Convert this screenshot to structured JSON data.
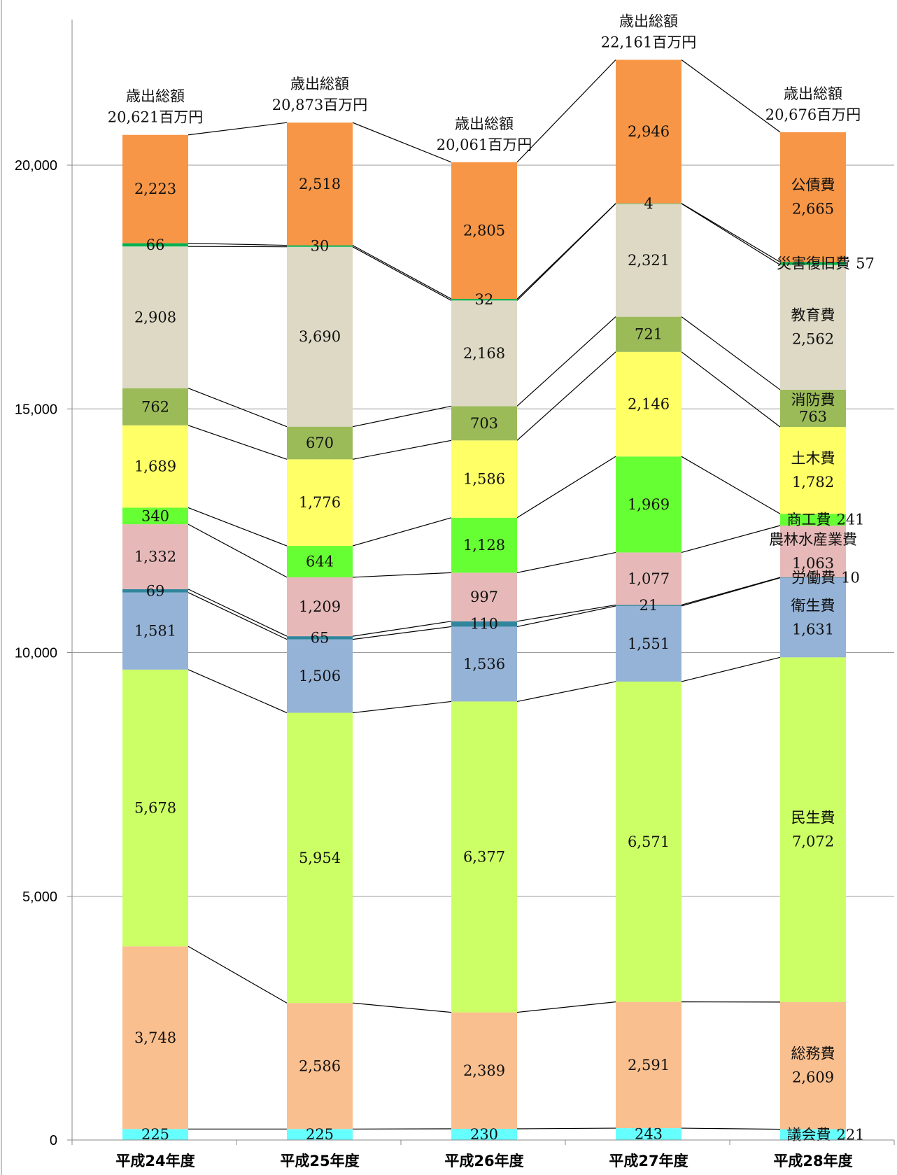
{
  "chart_data": {
    "type": "bar",
    "stacked": true,
    "ylim": [
      0,
      22500
    ],
    "yticks": [
      0,
      5000,
      10000,
      15000,
      20000
    ],
    "ytick_labels": [
      "0",
      "5,000",
      "10,000",
      "15,000",
      "20,000"
    ],
    "grid": true,
    "categories": [
      "平成24年度",
      "平成25年度",
      "平成26年度",
      "平成27年度",
      "平成28年度"
    ],
    "totals_prefix": "歳出総額",
    "totals": [
      "20,621百万円",
      "20,873百万円",
      "20,061百万円",
      "22,161百万円",
      "20,676百万円"
    ],
    "series": [
      {
        "name": "議会費",
        "color": "#66ffff",
        "values": [
          225,
          225,
          230,
          243,
          221
        ],
        "labels": [
          "225",
          "225",
          "230",
          "243",
          "221"
        ]
      },
      {
        "name": "総務費",
        "color": "#f9bf8f",
        "values": [
          3748,
          2586,
          2389,
          2591,
          2609
        ],
        "labels": [
          "3,748",
          "2,586",
          "2,389",
          "2,591",
          "2,609"
        ]
      },
      {
        "name": "民生費",
        "color": "#ccff66",
        "values": [
          5678,
          5954,
          6377,
          6571,
          7072
        ],
        "labels": [
          "5,678",
          "5,954",
          "6,377",
          "6,571",
          "7,072"
        ]
      },
      {
        "name": "衛生費",
        "color": "#95b3d7",
        "values": [
          1581,
          1506,
          1536,
          1551,
          1631
        ],
        "labels": [
          "1,581",
          "1,506",
          "1,536",
          "1,551",
          "1,631"
        ]
      },
      {
        "name": "労働費",
        "color": "#31859c",
        "values": [
          69,
          65,
          110,
          21,
          10
        ],
        "labels": [
          "69",
          "65",
          "110",
          "21",
          "10"
        ]
      },
      {
        "name": "農林水産業費",
        "color": "#e6b9b8",
        "values": [
          1332,
          1209,
          997,
          1077,
          1063
        ],
        "labels": [
          "1,332",
          "1,209",
          "997",
          "1,077",
          "1,063"
        ]
      },
      {
        "name": "商工費",
        "color": "#66ff33",
        "values": [
          340,
          644,
          1128,
          1969,
          241
        ],
        "labels": [
          "340",
          "644",
          "1,128",
          "1,969",
          "241"
        ]
      },
      {
        "name": "土木費",
        "color": "#ffff66",
        "values": [
          1689,
          1776,
          1586,
          2146,
          1782
        ],
        "labels": [
          "1,689",
          "1,776",
          "1,586",
          "2,146",
          "1,782"
        ]
      },
      {
        "name": "消防費",
        "color": "#9bbb59",
        "values": [
          762,
          670,
          703,
          721,
          763
        ],
        "labels": [
          "762",
          "670",
          "703",
          "721",
          "763"
        ]
      },
      {
        "name": "教育費",
        "color": "#ddd9c4",
        "values": [
          2908,
          3690,
          2168,
          2321,
          2562
        ],
        "labels": [
          "2,908",
          "3,690",
          "2,168",
          "2,321",
          "2,562"
        ]
      },
      {
        "name": "災害復旧費",
        "color": "#00b050",
        "values": [
          66,
          30,
          32,
          4,
          57
        ],
        "labels": [
          "66",
          "30",
          "32",
          "4",
          "57"
        ]
      },
      {
        "name": "公債費",
        "color": "#f79646",
        "values": [
          2223,
          2518,
          2805,
          2946,
          2665
        ],
        "labels": [
          "2,223",
          "2,518",
          "2,805",
          "2,946",
          "2,665"
        ]
      }
    ]
  }
}
